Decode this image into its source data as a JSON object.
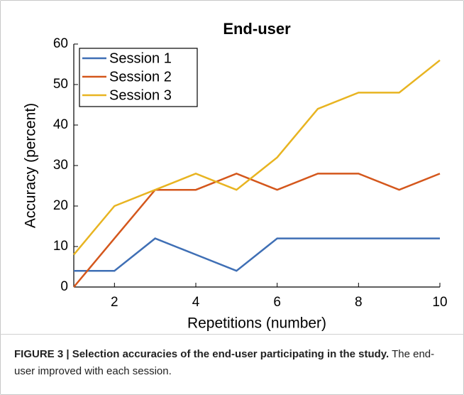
{
  "chart_data": {
    "type": "line",
    "title": "End-user",
    "x_label": "Repetitions (number)",
    "y_label": "Accuracy (percent)",
    "x": [
      1,
      2,
      3,
      4,
      5,
      6,
      7,
      8,
      9,
      10
    ],
    "series": [
      {
        "name": "Session 1",
        "color": "#3f6fb5",
        "values": [
          4,
          4,
          12,
          8,
          4,
          12,
          12,
          12,
          12,
          12
        ]
      },
      {
        "name": "Session 2",
        "color": "#d4571c",
        "values": [
          0,
          12,
          24,
          24,
          28,
          24,
          28,
          28,
          24,
          28
        ]
      },
      {
        "name": "Session 3",
        "color": "#e8b421",
        "values": [
          8,
          20,
          24,
          28,
          24,
          32,
          44,
          48,
          48,
          56
        ]
      }
    ],
    "xlim": [
      1,
      10
    ],
    "xticks": [
      2,
      4,
      6,
      8,
      10
    ],
    "ylim": [
      0,
      60
    ],
    "yticks": [
      0,
      10,
      20,
      30,
      40,
      50,
      60
    ],
    "legend": "upper left"
  },
  "caption": {
    "label": "FIGURE 3 | Selection accuracies of the end-user participating in the study.",
    "text": " The end-user improved with each session."
  }
}
